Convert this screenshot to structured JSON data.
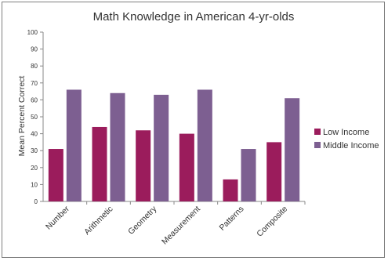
{
  "chart_data": {
    "type": "bar",
    "title": "Math Knowledge in American 4-yr-olds",
    "xlabel": "",
    "ylabel": "Mean Percent Correct",
    "ylim": [
      0,
      100
    ],
    "yticks": [
      0,
      10,
      20,
      30,
      40,
      50,
      60,
      70,
      80,
      90,
      100
    ],
    "categories": [
      "Number",
      "Arithmetic",
      "Geometry",
      "Measurement",
      "Patterns",
      "Composite"
    ],
    "series": [
      {
        "name": "Low Income",
        "color": "#9b1c5c",
        "values": [
          31,
          44,
          42,
          40,
          13,
          35
        ]
      },
      {
        "name": "Middle Income",
        "color": "#7d5f91",
        "values": [
          66,
          64,
          63,
          66,
          31,
          61
        ]
      }
    ],
    "grid": false,
    "legend": "right"
  }
}
